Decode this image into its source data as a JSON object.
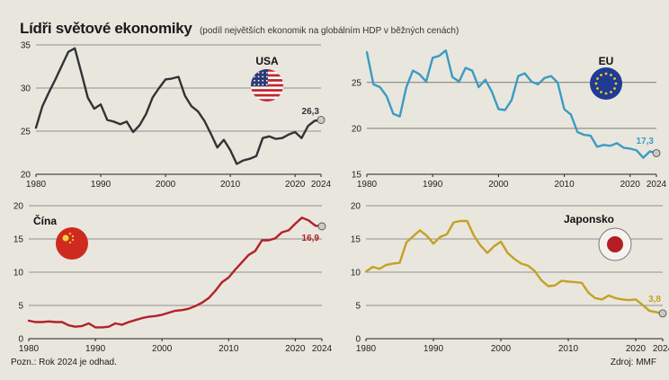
{
  "title": "Lídři světové ekonomiky",
  "subtitle": "(podíl největších ekonomik na globálním HDP v běžných cenách)",
  "note": "Pozn.: Rok 2024 je odhad.",
  "source": "Zdroj: MMF",
  "chart_data": [
    {
      "type": "line",
      "name": "USA",
      "color": "#2f3436",
      "icon": "usa-flag-icon",
      "end_label": "26,3",
      "xticks": [
        1980,
        1990,
        2000,
        2010,
        2020,
        2024
      ],
      "xlim": [
        1980,
        2024
      ],
      "yticks": [
        20,
        25,
        30,
        35
      ],
      "ylim": [
        20,
        35
      ],
      "x": [
        1980,
        1981,
        1982,
        1983,
        1984,
        1985,
        1986,
        1987,
        1988,
        1989,
        1990,
        1991,
        1992,
        1993,
        1994,
        1995,
        1996,
        1997,
        1998,
        1999,
        2000,
        2001,
        2002,
        2003,
        2004,
        2005,
        2006,
        2007,
        2008,
        2009,
        2010,
        2011,
        2012,
        2013,
        2014,
        2015,
        2016,
        2017,
        2018,
        2019,
        2020,
        2021,
        2022,
        2023,
        2024
      ],
      "values": [
        25.4,
        27.9,
        29.5,
        31,
        32.6,
        34.2,
        34.6,
        31.8,
        28.9,
        27.6,
        28.1,
        26.3,
        26.1,
        25.8,
        26.1,
        24.9,
        25.7,
        27,
        28.9,
        30,
        31,
        31.1,
        31.3,
        29.1,
        27.9,
        27.3,
        26.2,
        24.7,
        23.1,
        24,
        22.8,
        21.2,
        21.6,
        21.8,
        22.1,
        24.2,
        24.4,
        24.1,
        24.2,
        24.6,
        24.9,
        24.2,
        25.6,
        26.2,
        26.3
      ]
    },
    {
      "type": "line",
      "name": "EU",
      "color": "#3a9cc2",
      "icon": "eu-flag-icon",
      "end_label": "17,3",
      "xticks": [
        1980,
        1990,
        2000,
        2010,
        2020,
        2024
      ],
      "xlim": [
        1980,
        2024
      ],
      "yticks": [
        15,
        20,
        25
      ],
      "ylim": [
        15,
        29
      ],
      "x": [
        1980,
        1981,
        1982,
        1983,
        1984,
        1985,
        1986,
        1987,
        1988,
        1989,
        1990,
        1991,
        1992,
        1993,
        1994,
        1995,
        1996,
        1997,
        1998,
        1999,
        2000,
        2001,
        2002,
        2003,
        2004,
        2005,
        2006,
        2007,
        2008,
        2009,
        2010,
        2011,
        2012,
        2013,
        2014,
        2015,
        2016,
        2017,
        2018,
        2019,
        2020,
        2021,
        2022,
        2023,
        2024
      ],
      "values": [
        28.3,
        24.8,
        24.5,
        23.5,
        21.6,
        21.3,
        24.5,
        26.3,
        25.9,
        25.1,
        27.7,
        27.9,
        28.5,
        25.6,
        25.1,
        26.6,
        26.3,
        24.5,
        25.3,
        24,
        22.1,
        22,
        23.1,
        25.7,
        26,
        25.1,
        24.8,
        25.5,
        25.7,
        25,
        22.1,
        21.5,
        19.6,
        19.3,
        19.2,
        18,
        18.2,
        18.1,
        18.4,
        17.9,
        17.8,
        17.6,
        16.8,
        17.5,
        17.3
      ]
    },
    {
      "type": "line",
      "name": "Čína",
      "color": "#b3202a",
      "icon": "china-flag-icon",
      "end_label": "16,9",
      "xticks": [
        1980,
        1990,
        2000,
        2010,
        2020,
        2024
      ],
      "xlim": [
        1980,
        2024
      ],
      "yticks": [
        0,
        5,
        10,
        15,
        20
      ],
      "ylim": [
        0,
        20
      ],
      "x": [
        1980,
        1981,
        1982,
        1983,
        1984,
        1985,
        1986,
        1987,
        1988,
        1989,
        1990,
        1991,
        1992,
        1993,
        1994,
        1995,
        1996,
        1997,
        1998,
        1999,
        2000,
        2001,
        2002,
        2003,
        2004,
        2005,
        2006,
        2007,
        2008,
        2009,
        2010,
        2011,
        2012,
        2013,
        2014,
        2015,
        2016,
        2017,
        2018,
        2019,
        2020,
        2021,
        2022,
        2023,
        2024
      ],
      "values": [
        2.7,
        2.5,
        2.5,
        2.6,
        2.5,
        2.5,
        2,
        1.8,
        1.9,
        2.3,
        1.7,
        1.7,
        1.8,
        2.3,
        2.1,
        2.5,
        2.8,
        3.1,
        3.3,
        3.4,
        3.6,
        3.9,
        4.2,
        4.3,
        4.5,
        4.9,
        5.4,
        6.1,
        7.2,
        8.5,
        9.2,
        10.4,
        11.5,
        12.6,
        13.2,
        14.8,
        14.8,
        15.1,
        16,
        16.3,
        17.3,
        18.2,
        17.8,
        17,
        16.9
      ]
    },
    {
      "type": "line",
      "name": "Japonsko",
      "color": "#c3a125",
      "icon": "japan-flag-icon",
      "end_label": "3,8",
      "xticks": [
        1980,
        1990,
        2000,
        2010,
        2020,
        2024
      ],
      "xlim": [
        1980,
        2024
      ],
      "yticks": [
        0,
        5,
        10,
        15,
        20
      ],
      "ylim": [
        0,
        20
      ],
      "x": [
        1980,
        1981,
        1982,
        1983,
        1984,
        1985,
        1986,
        1987,
        1988,
        1989,
        1990,
        1991,
        1992,
        1993,
        1994,
        1995,
        1996,
        1997,
        1998,
        1999,
        2000,
        2001,
        2002,
        2003,
        2004,
        2005,
        2006,
        2007,
        2008,
        2009,
        2010,
        2011,
        2012,
        2013,
        2014,
        2015,
        2016,
        2017,
        2018,
        2019,
        2020,
        2021,
        2022,
        2023,
        2024
      ],
      "values": [
        10.1,
        10.8,
        10.5,
        11.1,
        11.3,
        11.4,
        14.5,
        15.4,
        16.3,
        15.5,
        14.3,
        15.3,
        15.7,
        17.5,
        17.7,
        17.7,
        15.5,
        14,
        12.9,
        13.9,
        14.6,
        12.9,
        12,
        11.3,
        11,
        10.2,
        8.8,
        7.9,
        8,
        8.7,
        8.6,
        8.5,
        8.4,
        6.9,
        6.1,
        5.9,
        6.5,
        6.1,
        5.9,
        5.8,
        5.9,
        5.1,
        4.2,
        4,
        3.8
      ]
    }
  ]
}
